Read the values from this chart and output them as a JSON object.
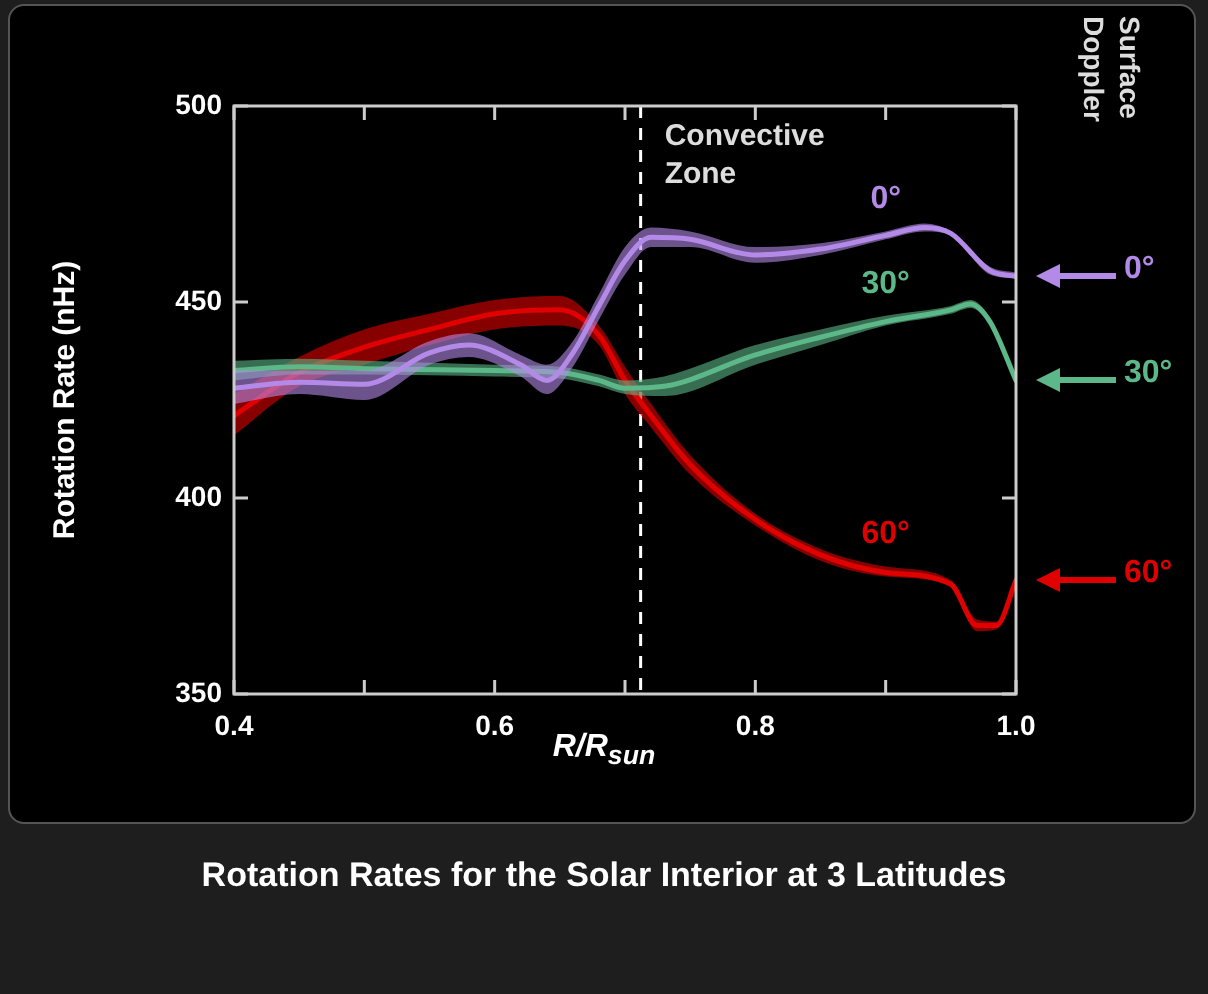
{
  "chart_data": {
    "type": "line",
    "title": "Rotation Rates for the Solar Interior at 3 Latitudes",
    "xlabel": "R/R$_{sun}$",
    "ylabel": "Rotation Rate (nHz)",
    "series": [
      {
        "name": "0°",
        "color": "#b48ae8",
        "x": [
          0.4,
          0.45,
          0.5,
          0.55,
          0.58,
          0.62,
          0.64,
          0.66,
          0.68,
          0.7,
          0.72,
          0.75,
          0.8,
          0.85,
          0.9,
          0.93,
          0.95,
          0.98,
          1.0
        ],
        "values": [
          428,
          429.5,
          429,
          437,
          439,
          434,
          430,
          437,
          449,
          460.5,
          466.5,
          466,
          462,
          463.5,
          467,
          469,
          467.5,
          458,
          456.5
        ],
        "lower": [
          424,
          426.5,
          425,
          434,
          436,
          431,
          426.5,
          433.5,
          445.5,
          457,
          464,
          464,
          460,
          462,
          466,
          468,
          467,
          457,
          456
        ],
        "upper": [
          432.5,
          432.5,
          432.5,
          440,
          442,
          436.5,
          434,
          440,
          452,
          464,
          469,
          468,
          464,
          465,
          468,
          470,
          468,
          459,
          457.5
        ]
      },
      {
        "name": "30°",
        "color": "#5cb888",
        "x": [
          0.4,
          0.45,
          0.5,
          0.6,
          0.65,
          0.68,
          0.7,
          0.73,
          0.8,
          0.85,
          0.9,
          0.95,
          0.965,
          0.98,
          1.0
        ],
        "values": [
          432.5,
          433.5,
          433,
          432.5,
          432,
          430,
          428,
          428.5,
          436.5,
          441,
          445,
          448,
          449.5,
          445,
          430
        ],
        "lower": [
          430,
          431.5,
          431.5,
          431,
          430.5,
          428.5,
          426.5,
          426,
          434,
          439,
          444,
          447,
          448.5,
          444,
          429
        ],
        "upper": [
          435,
          435.5,
          435,
          434,
          433.5,
          431.5,
          430,
          431,
          439,
          443,
          446.5,
          449,
          450.5,
          446,
          431
        ]
      },
      {
        "name": "60°",
        "color": "#e00000",
        "x": [
          0.4,
          0.45,
          0.5,
          0.55,
          0.6,
          0.65,
          0.68,
          0.7,
          0.72,
          0.75,
          0.8,
          0.85,
          0.9,
          0.95,
          0.97,
          0.985,
          1.0
        ],
        "values": [
          421,
          432,
          438.5,
          443,
          447,
          448,
          441.5,
          430,
          421,
          408.5,
          394.5,
          385.5,
          381,
          378,
          367.5,
          367.5,
          379
        ],
        "lower": [
          416,
          428.5,
          434,
          439,
          443,
          444,
          439,
          426.5,
          418,
          406,
          393,
          384,
          380,
          377.5,
          366,
          366.5,
          378
        ],
        "upper": [
          426.5,
          436,
          443,
          447,
          450.5,
          451.5,
          444,
          433.5,
          424,
          411,
          396,
          387,
          382.5,
          379,
          369,
          368.5,
          380
        ]
      }
    ],
    "xlim": [
      0.4,
      1.0
    ],
    "xticks": [
      0.4,
      {
        "value": 0.5,
        "label": null
      },
      0.6,
      {
        "value": 0.7,
        "label": null
      },
      0.8,
      {
        "value": 0.9,
        "label": null
      },
      {
        "value": 1.0,
        "label": "1.0"
      }
    ],
    "ylim": [
      350,
      500
    ],
    "yticks": [
      350,
      400,
      450,
      500
    ],
    "ref_lines": [
      {
        "axis": "x",
        "value": 0.712,
        "label": "Convective Zone",
        "color": "#ffffff",
        "line_style": "dashed"
      }
    ],
    "annotations": [
      "Surface Doppler",
      "0°",
      "30°",
      "60°"
    ],
    "grid": false,
    "legend": false,
    "marker": "none",
    "line_style": "solid"
  }
}
